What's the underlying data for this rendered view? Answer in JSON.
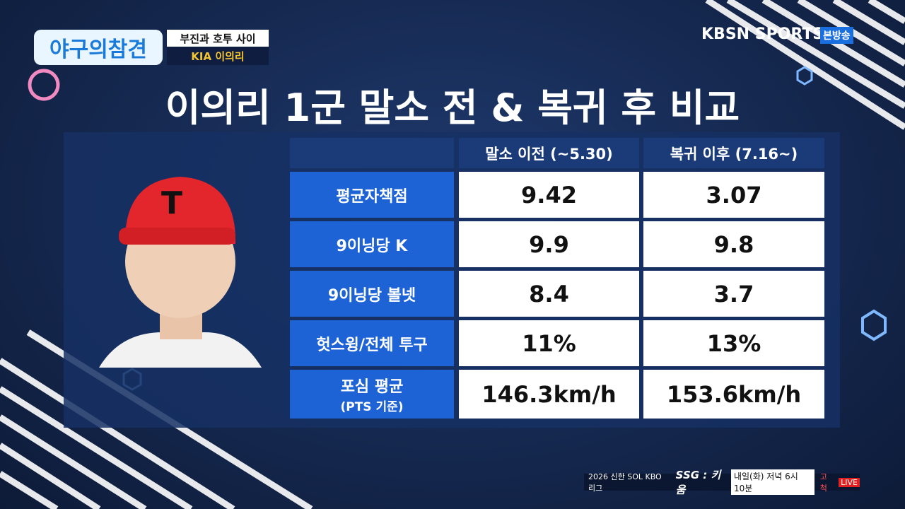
{
  "header": {
    "show_logo": "야구의참견",
    "subtitle": "부진과 호투 사이",
    "player_tag": "KIA 이의리",
    "broadcaster": "KBSN SPORTS",
    "broadcast_tag": "본방송"
  },
  "title": "이의리 1군 말소 전 & 복귀 후 비교",
  "table": {
    "columns": [
      "말소 이전 (~5.30)",
      "복귀 이후 (7.16~)"
    ],
    "rows": [
      {
        "label": [
          "평균자책점"
        ],
        "values": [
          "9.42",
          "3.07"
        ]
      },
      {
        "label": [
          "9이닝당 K"
        ],
        "values": [
          "9.9",
          "9.8"
        ]
      },
      {
        "label": [
          "9이닝당 볼넷"
        ],
        "values": [
          "8.4",
          "3.7"
        ]
      },
      {
        "label": [
          "헛스윙/전체 투구"
        ],
        "values": [
          "11%",
          "13%"
        ]
      },
      {
        "label": [
          "포심 평균",
          "(PTS 기준)"
        ],
        "values": [
          "146.3km/h",
          "153.6km/h"
        ]
      }
    ]
  },
  "ticker": {
    "league": "2026 신한 SOL KBO 리그",
    "matchup": "SSG : 키움",
    "schedule": "내일(화) 저녁 6시 10분",
    "venue": "고척",
    "live": "LIVE"
  }
}
